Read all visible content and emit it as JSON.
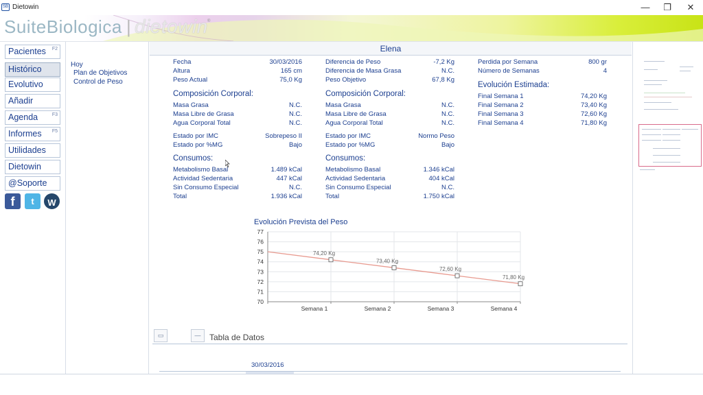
{
  "window": {
    "title": "Dietowin",
    "app_icon_text": "SB",
    "minimize_glyph": "—",
    "restore_glyph": "❐",
    "close_glyph": "✕"
  },
  "banner": {
    "brand_suite": "SuiteBiologica",
    "brand_separator": "|",
    "brand_product": "dietowin",
    "brand_reg": "®"
  },
  "nav": {
    "items": [
      {
        "label": "Pacientes",
        "key": "F2"
      },
      {
        "label": "Histórico",
        "key": ""
      },
      {
        "label": "Evolutivo",
        "key": ""
      },
      {
        "label": "Añadir",
        "key": ""
      },
      {
        "label": "Agenda",
        "key": "F3"
      },
      {
        "label": "Informes",
        "key": "F5"
      },
      {
        "label": "Utilidades",
        "key": ""
      },
      {
        "label": "Dietowin",
        "key": ""
      },
      {
        "label": "@Soporte",
        "key": ""
      }
    ],
    "social": {
      "facebook": "f",
      "twitter": "t",
      "wordpress": "W"
    }
  },
  "tree": {
    "root": "Hoy",
    "children": [
      "Plan de Objetivos",
      "Control de Peso"
    ]
  },
  "patient": {
    "name": "Elena"
  },
  "col1": {
    "rows": [
      {
        "label": "Fecha",
        "value": "30/03/2016"
      },
      {
        "label": "Altura",
        "value": "165 cm"
      },
      {
        "label": "Peso Actual",
        "value": "75,0 Kg"
      }
    ],
    "composicion_title": "Composición Corporal:",
    "composicion": [
      {
        "label": "Masa Grasa",
        "value": "N.C."
      },
      {
        "label": "Masa Libre de Grasa",
        "value": "N.C."
      },
      {
        "label": "Agua Corporal Total",
        "value": "N.C."
      }
    ],
    "estado": [
      {
        "label": "Estado por IMC",
        "value": "Sobrepeso II"
      },
      {
        "label": "Estado por %MG",
        "value": "Bajo"
      }
    ],
    "consumos_title": "Consumos:",
    "consumos": [
      {
        "label": "Metabolismo Basal",
        "value": "1.489 kCal"
      },
      {
        "label": "Actividad Sedentaria",
        "value": "447 kCal"
      },
      {
        "label": "Sin Consumo Especial",
        "value": "N.C."
      },
      {
        "label": "Total",
        "value": "1.936 kCal"
      }
    ]
  },
  "col2": {
    "rows": [
      {
        "label": "Diferencia de Peso",
        "value": "-7,2 Kg"
      },
      {
        "label": "Diferencia de Masa Grasa",
        "value": "N.C."
      },
      {
        "label": "Peso Objetivo",
        "value": "67,8 Kg"
      }
    ],
    "composicion_title": "Composición Corporal:",
    "composicion": [
      {
        "label": "Masa Grasa",
        "value": "N.C."
      },
      {
        "label": "Masa Libre de Grasa",
        "value": "N.C."
      },
      {
        "label": "Agua Corporal Total",
        "value": "N.C."
      }
    ],
    "estado": [
      {
        "label": "Estado por IMC",
        "value": "Normo Peso"
      },
      {
        "label": "Estado por %MG",
        "value": "Bajo"
      }
    ],
    "consumos_title": "Consumos:",
    "consumos": [
      {
        "label": "Metabolismo Basal",
        "value": "1.346 kCal"
      },
      {
        "label": "Actividad Sedentaria",
        "value": "404 kCal"
      },
      {
        "label": "Sin Consumo Especial",
        "value": "N.C."
      },
      {
        "label": "Total",
        "value": "1.750 kCal"
      }
    ]
  },
  "col3": {
    "rows": [
      {
        "label": "Perdida por Semana",
        "value": "800 gr"
      },
      {
        "label": "Número de Semanas",
        "value": "4"
      }
    ],
    "evolucion_title": "Evolución Estimada:",
    "evolucion": [
      {
        "label": "Final Semana 1",
        "value": "74,20 Kg"
      },
      {
        "label": "Final Semana 2",
        "value": "73,40 Kg"
      },
      {
        "label": "Final Semana 3",
        "value": "72,60 Kg"
      },
      {
        "label": "Final Semana 4",
        "value": "71,80 Kg"
      }
    ]
  },
  "chart_data": {
    "type": "line",
    "title": "Evolución Prevista del Peso",
    "xlabel": "",
    "ylabel": "",
    "categories": [
      "",
      "Semana 1",
      "Semana 2",
      "Semana 3",
      "Semana 4"
    ],
    "values": [
      75.0,
      74.2,
      73.4,
      72.6,
      71.8
    ],
    "data_labels": [
      "",
      "74,20 Kg",
      "73,40 Kg",
      "72,60 Kg",
      "71,80 Kg"
    ],
    "ylim": [
      70,
      77
    ],
    "yticks": [
      70,
      71,
      72,
      73,
      74,
      75,
      76,
      77
    ],
    "grid": true,
    "line_color": "#e89a8f"
  },
  "tabla": {
    "label": "Tabla de Datos",
    "date": "30/03/2016",
    "btn1_icon": "print-icon",
    "btn2_icon": "collapse-icon",
    "btn1_glyph": "▭",
    "btn2_glyph": "—"
  }
}
